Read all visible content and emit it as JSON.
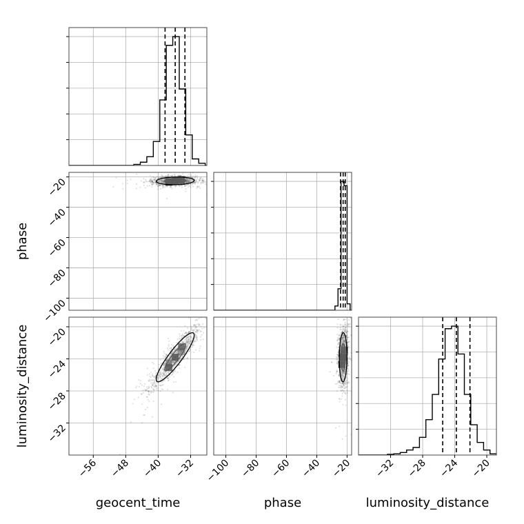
{
  "chart_data": {
    "type": "corner",
    "parameters": [
      {
        "name": "geocent_time",
        "label": "geocent_time",
        "range": [
          -62,
          -28
        ],
        "ticks": [
          -56,
          -48,
          -40,
          -32
        ]
      },
      {
        "name": "phase",
        "label": "phase",
        "range": [
          -108,
          -17
        ],
        "ticks": [
          -100,
          -80,
          -60,
          -40,
          -20
        ]
      },
      {
        "name": "luminosity_distance",
        "label": "luminosity_distance",
        "range": [
          -36,
          -18.8
        ],
        "ticks": [
          -32,
          -28,
          -24,
          -20
        ]
      }
    ],
    "diagonal_histograms": [
      {
        "parameter": "geocent_time",
        "bin_edges": [
          -46,
          -44.4,
          -42.8,
          -41.2,
          -39.6,
          -38,
          -36.4,
          -34.8,
          -33.2,
          -31.6,
          -30,
          -28.4
        ],
        "counts": [
          0.5,
          1.5,
          4,
          11,
          30,
          55,
          59,
          35,
          14,
          3,
          1
        ],
        "quantiles": [
          -38.3,
          -35.8,
          -33.4
        ]
      },
      {
        "parameter": "phase",
        "bin_edges": [
          -28,
          -26,
          -24,
          -22,
          -20,
          -18
        ],
        "counts": [
          2,
          10,
          60,
          58,
          3
        ],
        "quantiles": [
          -24.3,
          -22.6,
          -21.2
        ]
      },
      {
        "parameter": "luminosity_distance",
        "bin_edges": [
          -32.4,
          -31.6,
          -30.8,
          -30,
          -29.2,
          -28.4,
          -27.6,
          -26.8,
          -26,
          -25.2,
          -24.4,
          -23.6,
          -22.8,
          -22,
          -21.2,
          -20.4,
          -19.6,
          -18.8
        ],
        "counts": [
          0.3,
          0.5,
          1,
          2,
          3,
          7,
          14,
          24,
          38,
          50,
          51,
          40,
          24,
          12,
          5,
          2,
          0.5
        ],
        "quantiles": [
          -25.5,
          -23.8,
          -22.1
        ]
      }
    ],
    "joint_distributions": [
      {
        "x": "geocent_time",
        "y": "phase",
        "center": [
          -35.8,
          -22.6
        ],
        "spread": [
          2.6,
          1.4
        ],
        "correlation": 0.1
      },
      {
        "x": "geocent_time",
        "y": "luminosity_distance",
        "center": [
          -35.8,
          -23.8
        ],
        "spread": [
          2.6,
          1.7
        ],
        "correlation": 0.9
      },
      {
        "x": "phase",
        "y": "luminosity_distance",
        "center": [
          -22.6,
          -23.8
        ],
        "spread": [
          1.4,
          1.7
        ],
        "correlation": 0.05
      }
    ],
    "grid": true
  }
}
